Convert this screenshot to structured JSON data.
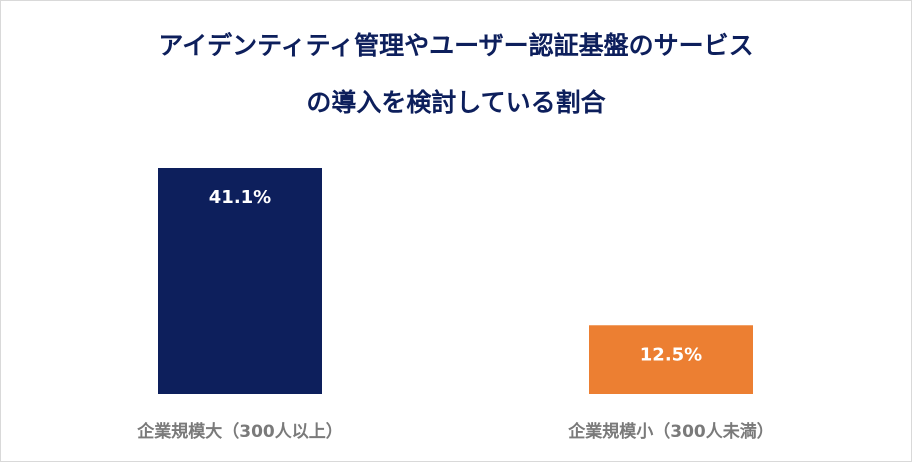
{
  "title_lines": [
    "アイデンティティ管理やユーザー認証基盤のサービス",
    "の導入を検討している割合"
  ],
  "chart_data": {
    "type": "bar",
    "title": "アイデンティティ管理やユーザー認証基盤のサービスの導入を検討している割合",
    "categories": [
      "企業規模大（300人以上）",
      "企業規模小（300人未満）"
    ],
    "values": [
      41.1,
      12.5
    ],
    "value_labels": [
      "41.1%",
      "12.5%"
    ],
    "colors": [
      "#0d1f5c",
      "#ec7f32"
    ],
    "ylim": [
      0,
      45
    ],
    "grid": false,
    "legend": "none"
  }
}
